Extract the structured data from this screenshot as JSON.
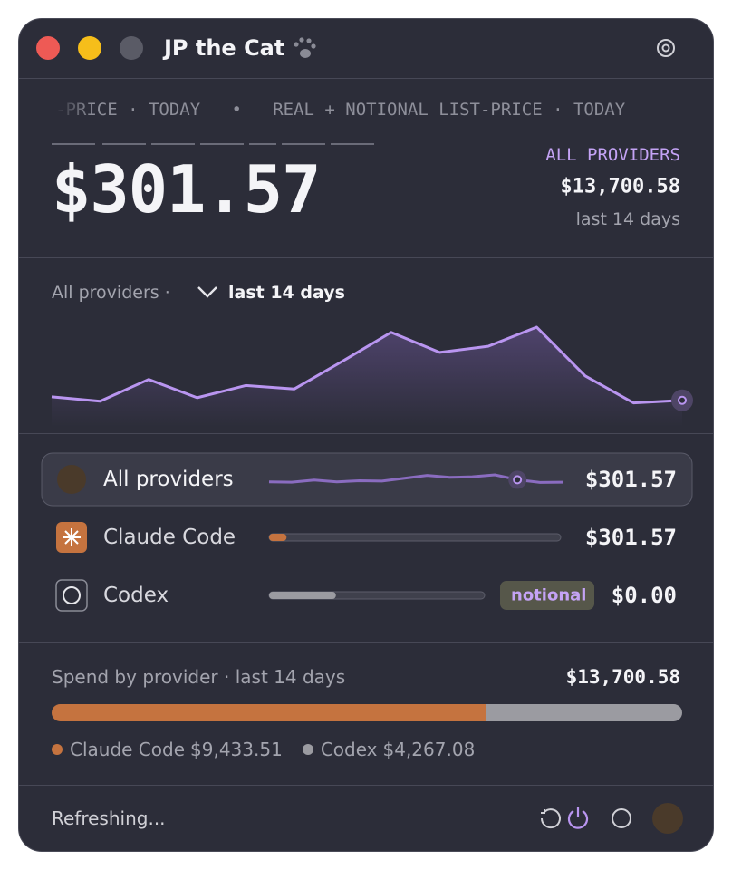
{
  "window": {
    "title": "JP the Cat"
  },
  "header": {
    "ticker": "-PRICE · TODAY   •   REAL + NOTIONAL LIST-PRICE · TODAY",
    "amount": "$301.57",
    "scope": "ALL PROVIDERS",
    "total": "$13,700.58",
    "period": "last 14 days"
  },
  "chart": {
    "filter": "All providers ·",
    "period": "last 14 days",
    "color": "#b995f0",
    "values": [
      24,
      19,
      44,
      23,
      37,
      33,
      65,
      98,
      75,
      82,
      104,
      48,
      17,
      20
    ]
  },
  "providers": [
    {
      "name": "All providers",
      "amount": "$301.57"
    },
    {
      "name": "Claude Code",
      "usage": 0.06,
      "amount": "$301.57"
    },
    {
      "name": "Codex",
      "usage": 0.31,
      "badge": "notional",
      "amount": "$0.00"
    }
  ],
  "spend": {
    "title": "Spend by provider · last 14 days",
    "total": "$13,700.58",
    "segments": [
      {
        "name": "Claude Code",
        "value": 9433.51,
        "label": "$9,433.51",
        "color": "#c5733f"
      },
      {
        "name": "Codex",
        "value": 4267.08,
        "label": "$4,267.08",
        "color": "#9b9ba1"
      }
    ]
  },
  "footer": {
    "status": "Refreshing..."
  }
}
